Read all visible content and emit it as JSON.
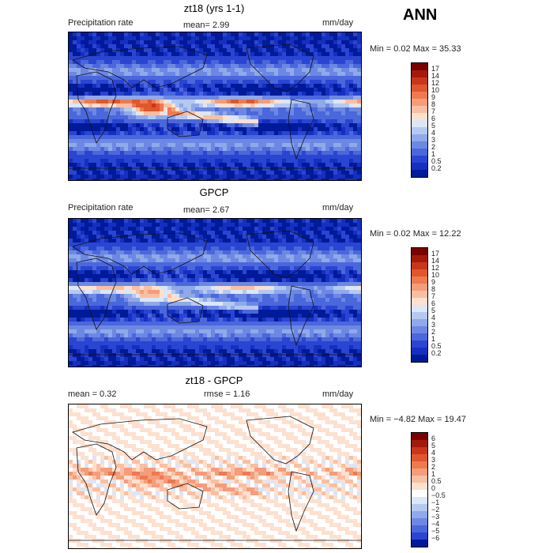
{
  "season": "ANN",
  "panels": [
    {
      "title": "zt18 (yrs 1-1)",
      "left_label": "Precipitation rate",
      "stat1": "mean=    2.99",
      "stat2": "",
      "units": "mm/day",
      "minmax": "Min =    0.02  Max =   35.33",
      "colorbar": {
        "labels": [
          "17",
          "14",
          "12",
          "10",
          "9",
          "8",
          "7",
          "6",
          "5",
          "4",
          "3",
          "2",
          "1",
          "0.5",
          "0.2"
        ],
        "colors": [
          "#7a0000",
          "#a31a0a",
          "#c8361c",
          "#e0562d",
          "#ee7a50",
          "#f59c7a",
          "#f9bfa3",
          "#fde0cf",
          "#dbe6f7",
          "#b5c9f0",
          "#8fa9ea",
          "#6d88e3",
          "#4b67dc",
          "#2a45d2",
          "#1530c0",
          "#001a99"
        ]
      },
      "style": "rate_model"
    },
    {
      "title": "GPCP",
      "left_label": "Precipitation rate",
      "stat1": "mean=    2.67",
      "stat2": "",
      "units": "mm/day",
      "minmax": "Min =    0.02  Max =   12.22",
      "colorbar": {
        "labels": [
          "17",
          "14",
          "12",
          "10",
          "9",
          "8",
          "7",
          "6",
          "5",
          "4",
          "3",
          "2",
          "1",
          "0.5",
          "0.2"
        ],
        "colors": [
          "#7a0000",
          "#a31a0a",
          "#c8361c",
          "#e0562d",
          "#ee7a50",
          "#f59c7a",
          "#f9bfa3",
          "#fde0cf",
          "#dbe6f7",
          "#b5c9f0",
          "#8fa9ea",
          "#6d88e3",
          "#4b67dc",
          "#2a45d2",
          "#1530c0",
          "#001a99"
        ]
      },
      "style": "rate_obs"
    },
    {
      "title": "zt18 - GPCP",
      "left_label": "mean =     0.32",
      "stat1": "",
      "stat2": "rmse =     1.16",
      "units": "mm/day",
      "minmax": "Min =   −4.82  Max =   19.47",
      "colorbar": {
        "labels": [
          "6",
          "5",
          "4",
          "3",
          "2",
          "1",
          "0.5",
          "0",
          "−0.5",
          "−1",
          "−2",
          "−3",
          "−4",
          "−5",
          "−6"
        ],
        "colors": [
          "#7a0000",
          "#a31a0a",
          "#c8361c",
          "#e0562d",
          "#ee7a50",
          "#f59c7a",
          "#f9bfa3",
          "#fde0cf",
          "#ffffff",
          "#dbe6f7",
          "#b5c9f0",
          "#8fa9ea",
          "#6d88e3",
          "#4b67dc",
          "#2a45d2",
          "#001a99"
        ]
      },
      "style": "diff"
    }
  ]
}
